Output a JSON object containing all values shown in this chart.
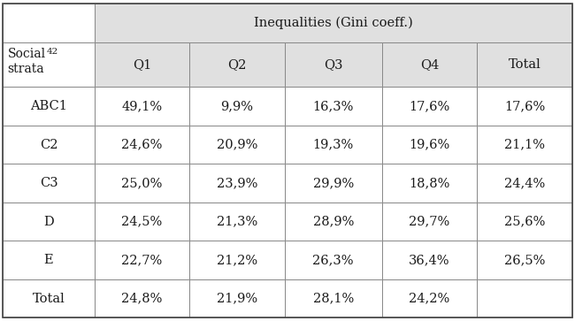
{
  "header_top": "Inequalities (Gini coeff.)",
  "col_headers": [
    "Q1",
    "Q2",
    "Q3",
    "Q4",
    "Total"
  ],
  "row_labels": [
    "ABC1",
    "C2",
    "C3",
    "D",
    "E",
    "Total"
  ],
  "data": [
    [
      "49,1%",
      "9,9%",
      "16,3%",
      "17,6%",
      "17,6%"
    ],
    [
      "24,6%",
      "20,9%",
      "19,3%",
      "19,6%",
      "21,1%"
    ],
    [
      "25,0%",
      "23,9%",
      "29,9%",
      "18,8%",
      "24,4%"
    ],
    [
      "24,5%",
      "21,3%",
      "28,9%",
      "29,7%",
      "25,6%"
    ],
    [
      "22,7%",
      "21,2%",
      "26,3%",
      "36,4%",
      "26,5%"
    ],
    [
      "24,8%",
      "21,9%",
      "28,1%",
      "24,2%",
      ""
    ]
  ],
  "header_bg": "#e0e0e0",
  "body_bg": "#ffffff",
  "left_col_bg": "#ffffff",
  "text_color": "#1a1a1a",
  "border_color": "#888888",
  "font_size": 10.5,
  "fig_width": 6.5,
  "fig_height": 3.63,
  "dpi": 100
}
